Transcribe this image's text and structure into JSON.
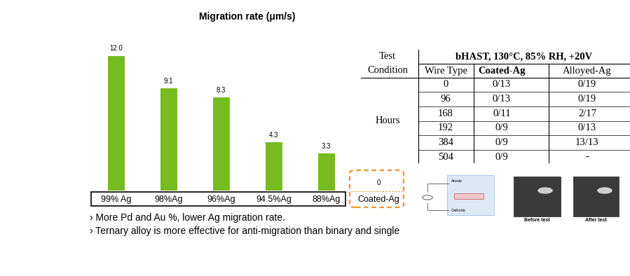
{
  "chart_data": {
    "type": "bar",
    "title": "Migration rate (μm/s)",
    "categories": [
      "99% Ag",
      "98%Ag",
      "96%Ag",
      "94.5%Ag",
      "88%Ag",
      "Coated-Ag"
    ],
    "values": [
      12.0,
      9.1,
      8.3,
      4.3,
      3.3,
      0
    ],
    "color": "#77bc1f",
    "data_labels": true,
    "tick_labels": "x"
  },
  "table": {
    "header": {
      "corner": [
        "Test",
        "Condition"
      ],
      "title": "bHAST, 130°C, 85% RH, +20V",
      "columns": [
        "Wire Type",
        "Coated-Ag",
        "Alloyed-Ag"
      ]
    },
    "row_group": "Hours",
    "rows": [
      [
        "0",
        "0/13",
        "0/19"
      ],
      [
        "96",
        "0/13",
        "0/19"
      ],
      [
        "168",
        "0/11",
        "2/17"
      ],
      [
        "192",
        "0/9",
        "0/13"
      ],
      [
        "384",
        "0/9",
        "13/13"
      ],
      [
        "504",
        "0/9",
        "-"
      ]
    ]
  },
  "notes": [
    "› More Pd and Au %, lower Ag migration rate.",
    "› Ternary alloy is more effective for anti-migration than binary and single"
  ],
  "figures": {
    "diagram": {
      "labels": [
        "Anode",
        "Cathode"
      ]
    },
    "photos": [
      "Before test",
      "After test"
    ]
  }
}
